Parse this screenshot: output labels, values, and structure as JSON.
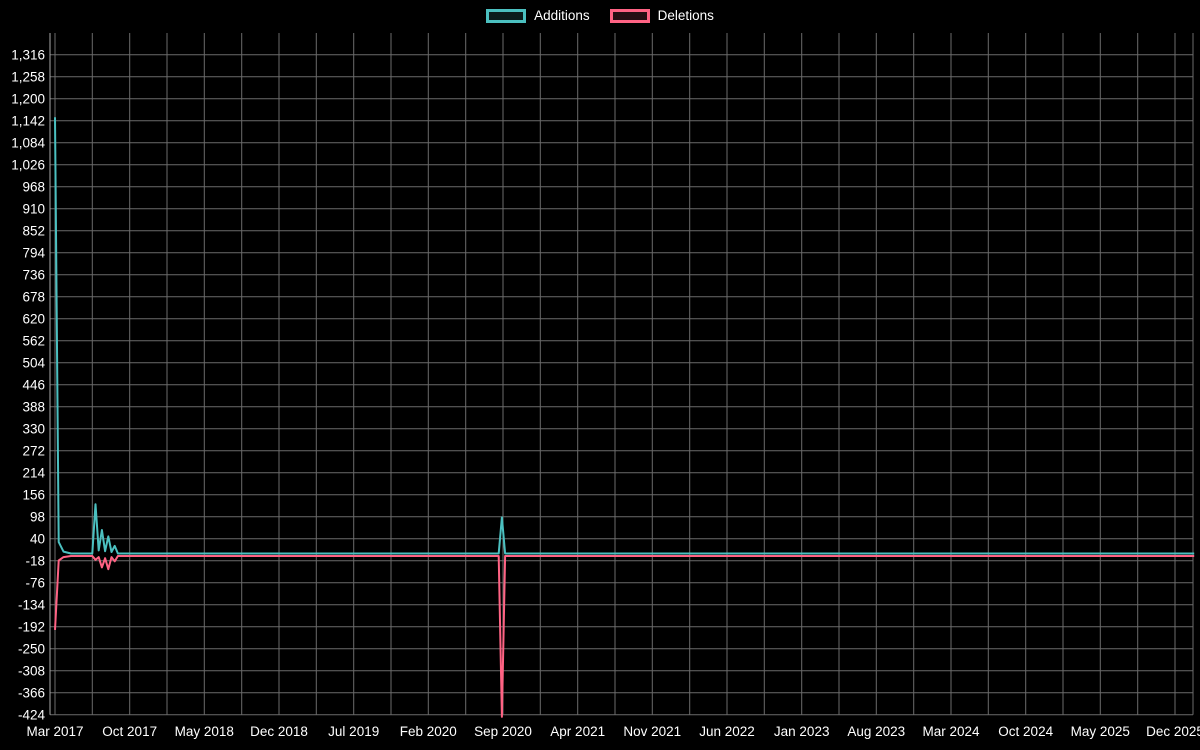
{
  "chart_data": {
    "type": "line",
    "title": "",
    "legend_position": "top",
    "background_color": "#000000",
    "grid_color": "#6b6b6b",
    "axis_color": "#aaaaaa",
    "text_color": "#ffffff",
    "grid": true,
    "x_tick_labels": [
      "Mar 2017",
      "Oct 2017",
      "May 2018",
      "Dec 2018",
      "Jul 2019",
      "Feb 2020",
      "Sep 2020",
      "Apr 2021",
      "Nov 2021",
      "Jun 2022",
      "Jan 2023",
      "Aug 2023",
      "Mar 2024",
      "Oct 2024",
      "May 2025",
      "Dec 2025"
    ],
    "months_per_x_tick": 7,
    "x_range_months": [
      0,
      105
    ],
    "y_ticks": [
      1316,
      1258,
      1200,
      1142,
      1084,
      1026,
      968,
      910,
      852,
      794,
      736,
      678,
      620,
      562,
      504,
      446,
      388,
      330,
      272,
      214,
      156,
      98,
      40,
      -18,
      -76,
      -134,
      -192,
      -250,
      -308,
      -366,
      -424
    ],
    "y_min": -424,
    "y_max": 1316,
    "points_format": "[months_since_Mar_2017, value]",
    "series": [
      {
        "name": "Additions",
        "color": "#4bc0c0",
        "points": [
          [
            0,
            1150
          ],
          [
            0.35,
            30
          ],
          [
            0.8,
            5
          ],
          [
            1.5,
            0
          ],
          [
            3.5,
            0
          ],
          [
            3.8,
            130
          ],
          [
            4.1,
            8
          ],
          [
            4.4,
            62
          ],
          [
            4.7,
            6
          ],
          [
            5.0,
            45
          ],
          [
            5.3,
            4
          ],
          [
            5.6,
            20
          ],
          [
            5.9,
            0
          ],
          [
            41.6,
            0
          ],
          [
            41.9,
            95
          ],
          [
            42.2,
            0
          ],
          [
            106.8,
            0
          ]
        ]
      },
      {
        "name": "Deletions",
        "color": "#ff6384",
        "points": [
          [
            0,
            -195
          ],
          [
            0.35,
            -12
          ],
          [
            0.8,
            -3
          ],
          [
            1.5,
            0
          ],
          [
            3.5,
            0
          ],
          [
            3.8,
            -10
          ],
          [
            4.1,
            -3
          ],
          [
            4.4,
            -30
          ],
          [
            4.7,
            -6
          ],
          [
            5.0,
            -35
          ],
          [
            5.3,
            -3
          ],
          [
            5.6,
            -14
          ],
          [
            5.9,
            0
          ],
          [
            41.6,
            0
          ],
          [
            41.9,
            -424
          ],
          [
            42.2,
            0
          ],
          [
            106.8,
            0
          ]
        ]
      }
    ]
  }
}
